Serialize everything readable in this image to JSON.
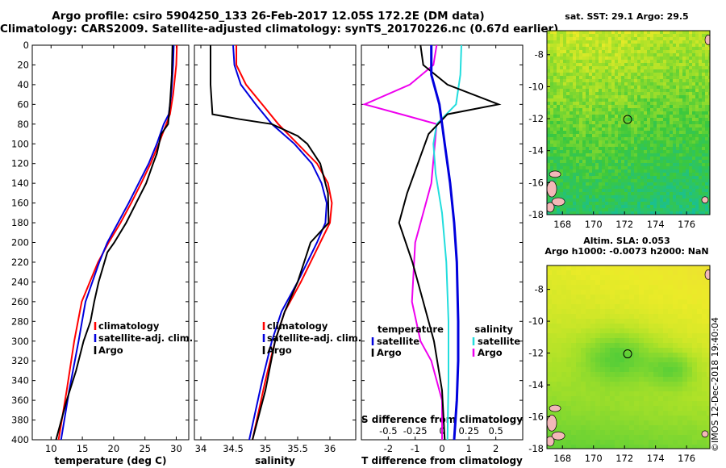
{
  "header": {
    "line1": "Argo profile: csiro 5904250_133 26-Feb-2017 12.05S 172.2E (DM data)",
    "line2": "Climatology: CARS2009. Satellite-adjusted climatology: synTS_20170226.nc (0.67d earlier)"
  },
  "sst_panel": {
    "title": "sat. SST: 29.1 Argo: 29.5"
  },
  "sla_panel": {
    "title_line1": "Altim. SLA: 0.053",
    "title_line2": "Argo h1000: -0.0073 h2000: NaN"
  },
  "credit": "©IMOS 12-Dec-2018 19:40:04",
  "colors": {
    "climatology": "#ff0000",
    "satellite": "#0000dd",
    "argo": "#000000",
    "sal_satellite": "#22dddd",
    "sal_argo": "#ee00ee"
  },
  "chart_data": [
    {
      "type": "line",
      "title": "",
      "xlabel": "temperature (deg C)",
      "ylabel": "",
      "xlim": [
        7,
        32
      ],
      "ylim": [
        400,
        0
      ],
      "xticks": [
        "10",
        "15",
        "20",
        "25",
        "30"
      ],
      "yticks": [
        "0",
        "20",
        "40",
        "60",
        "80",
        "100",
        "120",
        "140",
        "160",
        "180",
        "200",
        "220",
        "240",
        "260",
        "280",
        "300",
        "320",
        "340",
        "360",
        "380",
        "400"
      ],
      "legend": [
        "climatology",
        "satellite-adj. clim.",
        "Argo"
      ],
      "series": [
        {
          "name": "climatology",
          "color": "#ff0000",
          "x": [
            30.1,
            30.0,
            29.5,
            29.0,
            28.4,
            27.2,
            25.9,
            24.4,
            22.8,
            21.1,
            19.2,
            17.5,
            16.2,
            14.9,
            13.7,
            12.5,
            11.2
          ],
          "y": [
            0,
            20,
            50,
            70,
            80,
            100,
            120,
            140,
            160,
            180,
            200,
            220,
            240,
            260,
            300,
            350,
            400
          ]
        },
        {
          "name": "satellite-adj. clim.",
          "color": "#0000dd",
          "x": [
            29.6,
            29.5,
            29.2,
            28.8,
            28.0,
            26.9,
            25.6,
            24.0,
            22.4,
            20.7,
            19.0,
            17.7,
            16.6,
            15.5,
            14.4,
            12.9,
            11.6
          ],
          "y": [
            0,
            20,
            50,
            70,
            80,
            100,
            120,
            140,
            160,
            180,
            200,
            220,
            240,
            260,
            300,
            350,
            400
          ]
        },
        {
          "name": "Argo",
          "color": "#000000",
          "x": [
            29.4,
            29.3,
            29.0,
            28.7,
            27.6,
            26.9,
            26.3,
            25.2,
            23.6,
            22.0,
            20.1,
            19.0,
            17.6,
            16.9,
            16.3,
            15.2,
            14.0,
            12.5,
            10.8
          ],
          "y": [
            0,
            30,
            60,
            80,
            90,
            110,
            120,
            140,
            160,
            180,
            200,
            210,
            240,
            260,
            280,
            300,
            330,
            360,
            400
          ]
        }
      ]
    },
    {
      "type": "line",
      "title": "",
      "xlabel": "salinity",
      "ylabel": "",
      "xlim": [
        33.9,
        36.4
      ],
      "ylim": [
        400,
        0
      ],
      "xticks": [
        "34",
        "34.5",
        "35",
        "35.5",
        "36"
      ],
      "legend": [
        "climatology",
        "satellite-adj. clim.",
        "Argo"
      ],
      "series": [
        {
          "name": "climatology",
          "color": "#ff0000",
          "x": [
            34.55,
            34.55,
            34.7,
            34.95,
            35.2,
            35.5,
            35.8,
            35.97,
            36.03,
            36.0,
            35.85,
            35.55,
            35.3,
            35.15,
            35.0,
            34.9,
            34.8
          ],
          "y": [
            0,
            20,
            40,
            60,
            80,
            100,
            120,
            140,
            160,
            180,
            200,
            240,
            270,
            300,
            340,
            370,
            400
          ]
        },
        {
          "name": "satellite-adj. clim.",
          "color": "#0000dd",
          "x": [
            34.5,
            34.52,
            34.62,
            34.85,
            35.1,
            35.45,
            35.72,
            35.87,
            35.95,
            35.93,
            35.8,
            35.5,
            35.25,
            35.1,
            34.95,
            34.85,
            34.75
          ],
          "y": [
            0,
            20,
            40,
            60,
            80,
            100,
            120,
            140,
            160,
            180,
            200,
            240,
            270,
            300,
            340,
            370,
            400
          ]
        },
        {
          "name": "Argo",
          "color": "#000000",
          "x": [
            34.15,
            34.15,
            34.18,
            34.6,
            35.1,
            35.5,
            35.65,
            35.85,
            35.97,
            35.98,
            35.7,
            35.5,
            35.3,
            35.15,
            35.0,
            34.8
          ],
          "y": [
            0,
            40,
            70,
            75,
            80,
            92,
            100,
            120,
            150,
            180,
            200,
            240,
            270,
            300,
            350,
            400
          ]
        }
      ]
    },
    {
      "type": "line",
      "title": "",
      "xlabel": "T difference from climatology",
      "ylabel": "",
      "xlim": [
        -3,
        3
      ],
      "ylim": [
        400,
        0
      ],
      "xticks": [
        "-2",
        "-1",
        "0",
        "1",
        "2"
      ],
      "secondary_axis": {
        "label": "S difference from climatology",
        "ticks": [
          "-0.5",
          "-0.25",
          "0",
          "0.25",
          "0.5"
        ],
        "lim": [
          -0.75,
          0.75
        ]
      },
      "legend_left_title": "temperature",
      "legend_right_title": "salinity",
      "legend_left": [
        "satellite",
        "Argo"
      ],
      "legend_right": [
        "satellite",
        "Argo"
      ],
      "series": [
        {
          "name": "T satellite",
          "color": "#0000dd",
          "axis": "T",
          "x": [
            -0.4,
            -0.4,
            -0.1,
            0.1,
            0.3,
            0.45,
            0.55,
            0.6,
            0.6,
            0.55,
            0.45
          ],
          "y": [
            0,
            30,
            60,
            100,
            140,
            180,
            220,
            280,
            320,
            360,
            400
          ]
        },
        {
          "name": "T Argo",
          "color": "#000000",
          "axis": "T",
          "x": [
            -0.8,
            -0.7,
            0.2,
            2.1,
            0.2,
            -0.5,
            -0.9,
            -1.3,
            -1.6,
            -1.1,
            -0.7,
            -0.3,
            0.0,
            0.1
          ],
          "y": [
            0,
            20,
            40,
            60,
            70,
            90,
            120,
            150,
            180,
            220,
            260,
            300,
            350,
            400
          ]
        },
        {
          "name": "S satellite",
          "color": "#22dddd",
          "axis": "S",
          "x": [
            0.18,
            0.17,
            0.13,
            -0.05,
            -0.08,
            -0.06,
            0.0,
            0.04,
            0.06,
            0.06,
            0.05
          ],
          "y": [
            0,
            30,
            60,
            80,
            100,
            130,
            170,
            220,
            280,
            340,
            400
          ]
        },
        {
          "name": "S Argo",
          "color": "#ee00ee",
          "axis": "S",
          "x": [
            -0.05,
            -0.08,
            -0.3,
            -0.72,
            -0.38,
            -0.05,
            -0.1,
            -0.25,
            -0.28,
            -0.2,
            -0.1,
            0.0,
            0.0
          ],
          "y": [
            0,
            20,
            40,
            60,
            70,
            80,
            140,
            200,
            260,
            300,
            320,
            360,
            400
          ]
        }
      ]
    },
    {
      "type": "heatmap",
      "title": "sat. SST: 29.1 Argo: 29.5",
      "xticks": [
        "168",
        "170",
        "172",
        "174",
        "176"
      ],
      "yticks": [
        "-8",
        "-10",
        "-12",
        "-14",
        "-16",
        "-18"
      ],
      "xlim": [
        167,
        177.5
      ],
      "ylim": [
        -18,
        -6.5
      ],
      "argo_position": {
        "lon": 172.2,
        "lat": -12.05
      }
    },
    {
      "type": "heatmap",
      "title": "Altim. SLA: 0.053",
      "xticks": [
        "168",
        "170",
        "172",
        "174",
        "176"
      ],
      "yticks": [
        "-8",
        "-10",
        "-12",
        "-14",
        "-16",
        "-18"
      ],
      "xlim": [
        167,
        177.5
      ],
      "ylim": [
        -18,
        -6.5
      ],
      "argo_position": {
        "lon": 172.2,
        "lat": -12.05
      }
    }
  ]
}
